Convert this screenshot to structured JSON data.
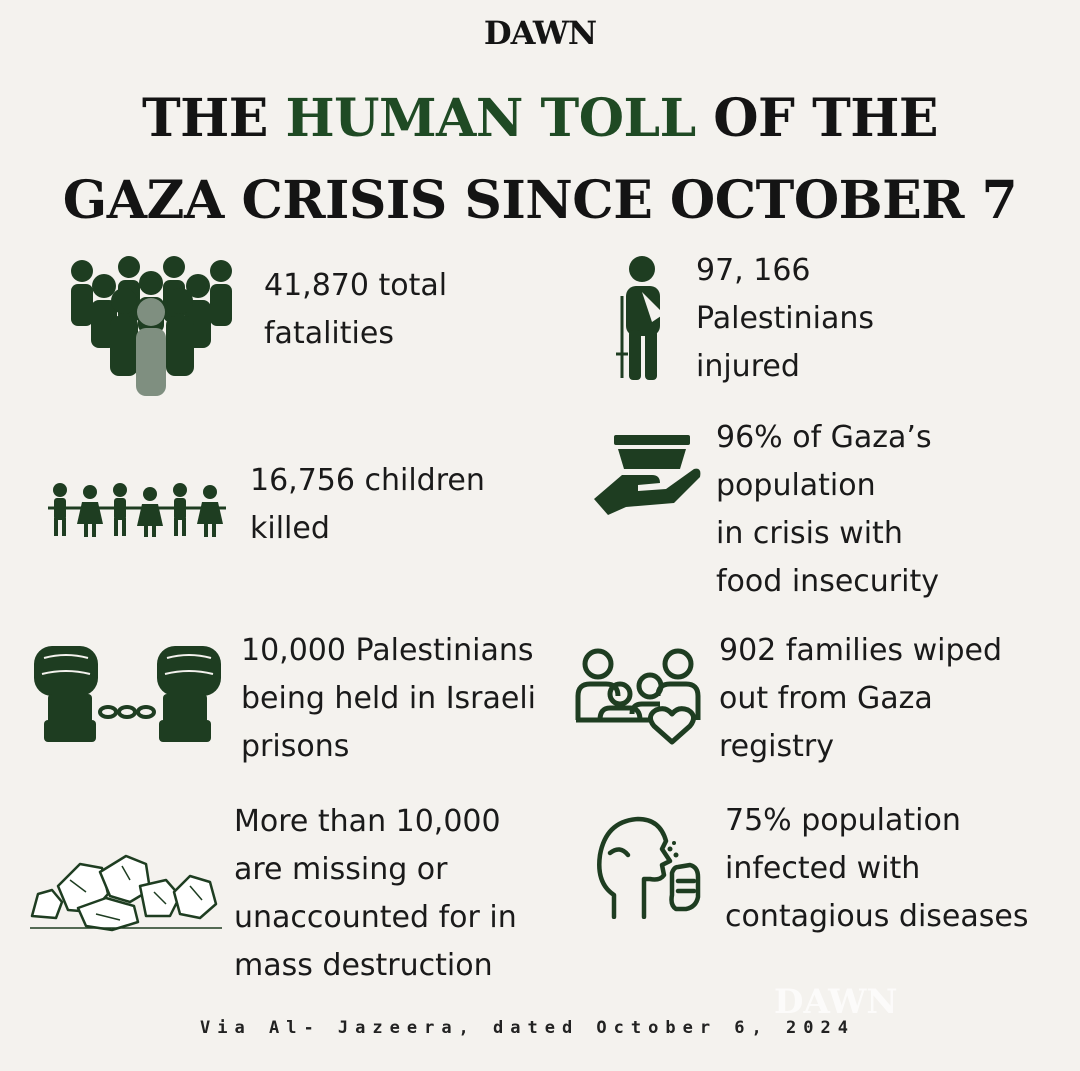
{
  "logo": "DAWN",
  "title": {
    "line1_prefix": "THE ",
    "line1_highlight": "HUMAN TOLL",
    "line1_suffix": " OF THE",
    "line2": "GAZA CRISIS SINCE OCTOBER 7"
  },
  "stats": {
    "fatalities": "41,870 total\nfatalities",
    "injured": "97, 166\nPalestinians\ninjured",
    "children": "16,756 children\nkilled",
    "food": "96% of Gaza’s\npopulation\nin crisis with\nfood insecurity",
    "prisoners": "10,000 Palestinians\nbeing held in Israeli\nprisons",
    "families": "902 families wiped\nout from Gaza\nregistry",
    "missing": "More than 10,000\nare missing or\nunaccounted for in\nmass destruction",
    "disease": "75%  population\ninfected with\ncontagious diseases"
  },
  "icons": {
    "fatalities": "crowd-icon",
    "injured": "injured-person-icon",
    "children": "children-chain-icon",
    "food": "food-bowl-hand-icon",
    "prisoners": "handcuffed-fists-icon",
    "families": "family-heart-icon",
    "missing": "rubble-icon",
    "disease": "coughing-person-icon"
  },
  "colors": {
    "background": "#f4f2ee",
    "accent": "#1f4a24",
    "icon_dark": "#1e3d21",
    "icon_light": "#7f8f80"
  },
  "footer": "Via Al- Jazeera, dated October 6, 2024",
  "watermark": "DAWN"
}
